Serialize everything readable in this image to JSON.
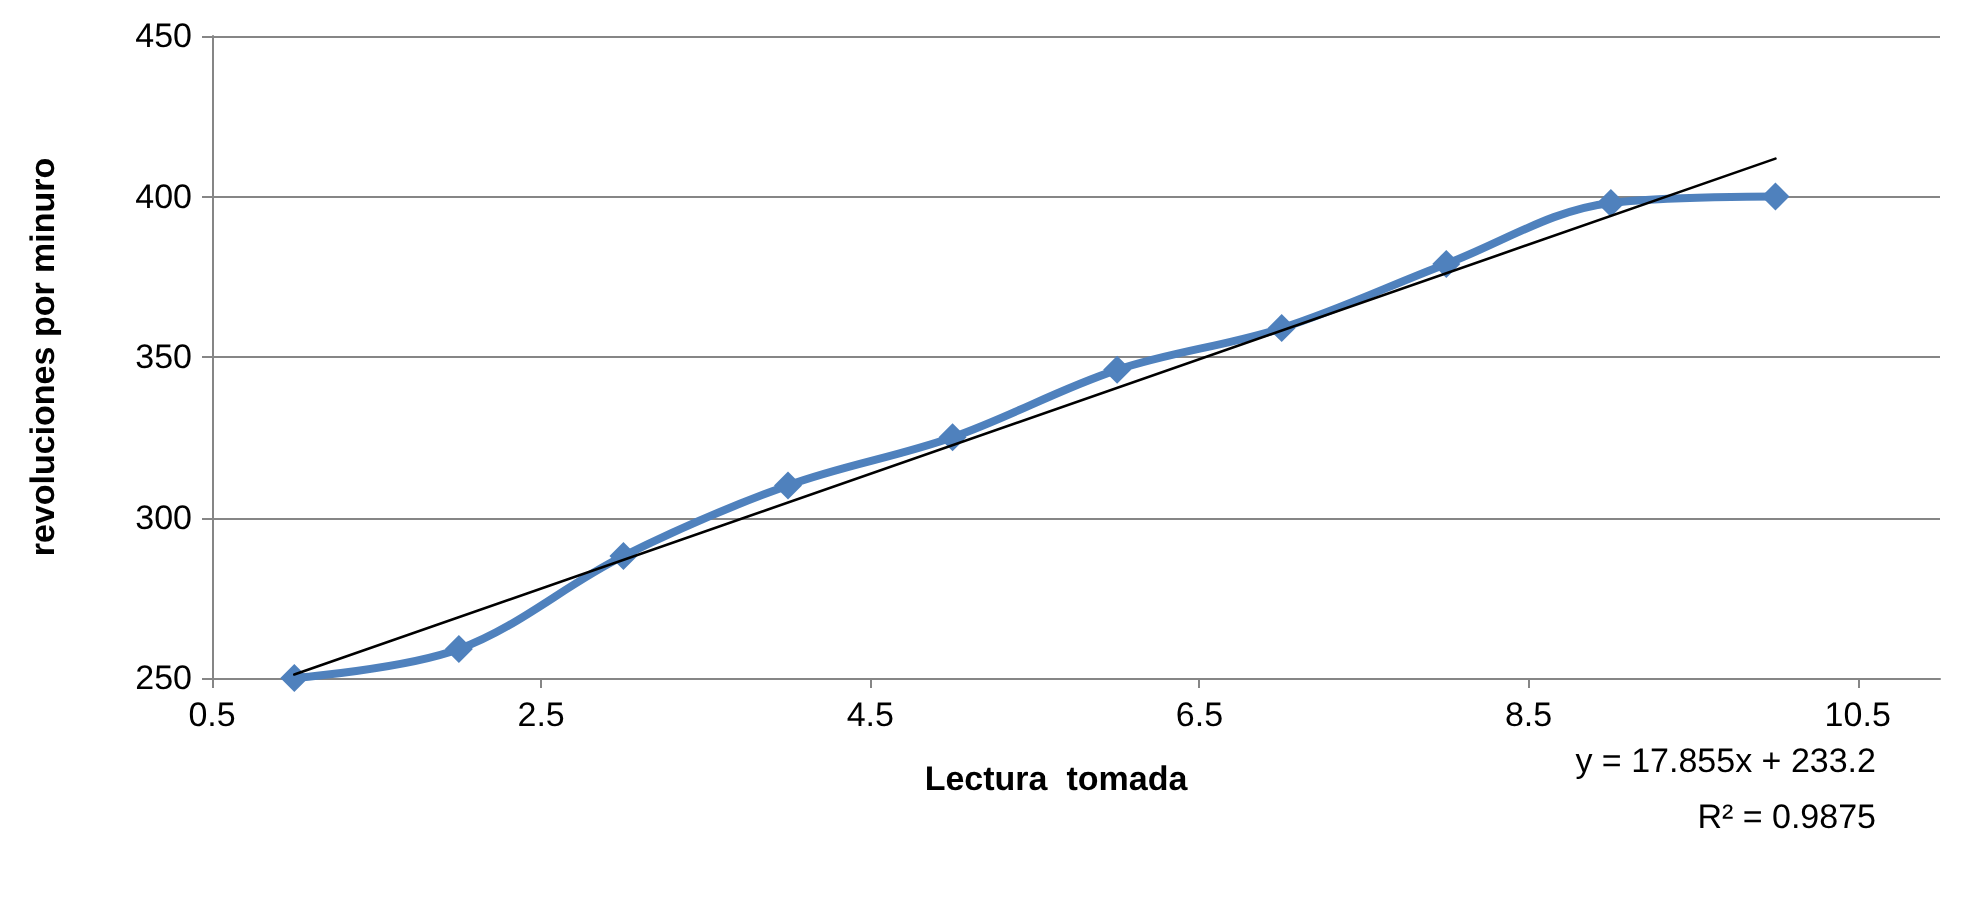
{
  "chart_data": {
    "type": "line",
    "xlabel": "Lectura  tomada",
    "ylabel": "revoluciones por minuro",
    "series": [
      {
        "color": "#4f81bd",
        "x": [
          1,
          2,
          3,
          4,
          5,
          6,
          7,
          8,
          9,
          10
        ],
        "values": [
          250,
          259,
          288,
          310,
          325,
          346,
          359,
          379,
          398,
          400
        ]
      },
      {
        "type": "line",
        "color": "#000000",
        "marker": "none",
        "x": [
          1,
          10
        ],
        "values": [
          251.1,
          411.8
        ]
      }
    ],
    "xlim": [
      0.5,
      11
    ],
    "xticks": [
      0.5,
      2.5,
      4.5,
      6.5,
      8.5,
      10.5
    ],
    "ylim": [
      250,
      450
    ],
    "yticks": [
      250,
      300,
      350,
      400,
      450
    ],
    "grid": "y",
    "marker": "diamond",
    "annotations": [
      "y = 17.855x + 233.2",
      "R² = 0.9875"
    ]
  }
}
